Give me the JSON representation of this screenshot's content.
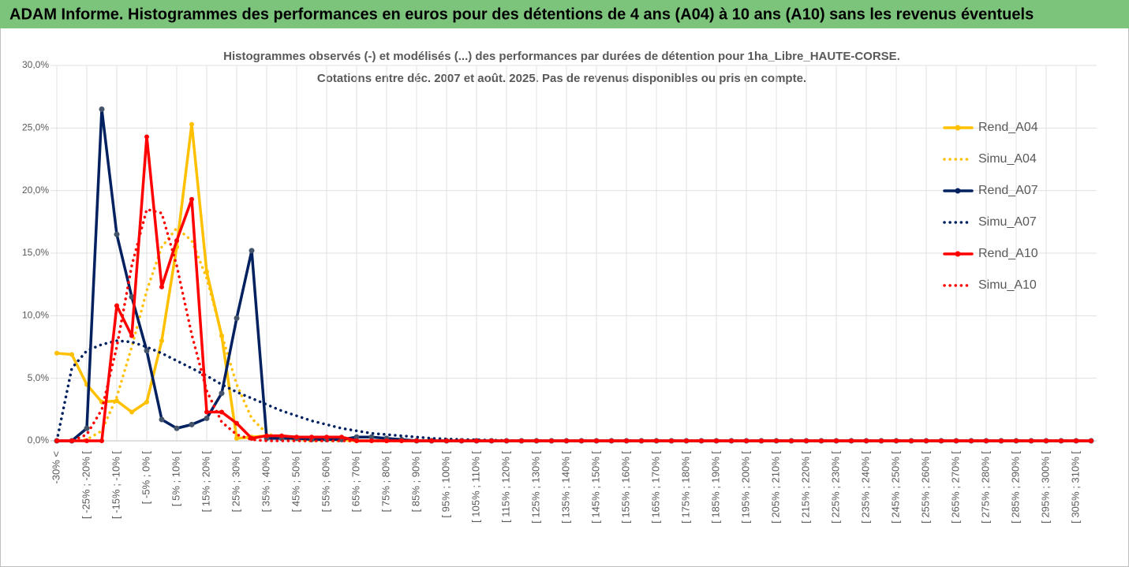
{
  "header": "ADAM Informe. Histogrammes des performances en euros pour des détentions de 4 ans (A04) à 10 ans (A10) sans les revenus éventuels",
  "chart_data": {
    "type": "line",
    "title": "Histogrammes observés (-) et modélisés (...) des performances par durées de détention pour 1ha_Libre_HAUTE-CORSE.",
    "subtitle": "Cotations entre déc. 2007 et août. 2025. Pas de revenus disponibles ou pris en compte.",
    "categories": [
      "-30% <",
      null,
      "[ -25% ; -20% [",
      null,
      "[ -15% ; -10% [",
      null,
      "[ -5% ; 0% [",
      null,
      "[ 5% ; 10% [",
      null,
      "[ 15% ; 20% [",
      null,
      "[ 25% ; 30% [",
      null,
      "[ 35% ; 40% [",
      null,
      "[ 45% ; 50% [",
      null,
      "[ 55% ; 60% [",
      null,
      "[ 65% ; 70% [",
      null,
      "[ 75% ; 80% [",
      null,
      "[ 85% ; 90% [",
      null,
      "[ 95% ; 100% [",
      null,
      "[ 105% ; 110% [",
      null,
      "[ 115% ; 120% [",
      null,
      "[ 125% ; 130% [",
      null,
      "[ 135% ; 140% [",
      null,
      "[ 145% ; 150% [",
      null,
      "[ 155% ; 160% [",
      null,
      "[ 165% ; 170% [",
      null,
      "[ 175% ; 180% [",
      null,
      "[ 185% ; 190% [",
      null,
      "[ 195% ; 200% [",
      null,
      "[ 205% ; 210% [",
      null,
      "[ 215% ; 220% [",
      null,
      "[ 225% ; 230% [",
      null,
      "[ 235% ; 240% [",
      null,
      "[ 245% ; 250% [",
      null,
      "[ 255% ; 260% [",
      null,
      "[ 265% ; 270% [",
      null,
      "[ 275% ; 280% [",
      null,
      "[ 285% ; 290% [",
      null,
      "[ 295% ; 300% [",
      null,
      "[ 305% ; 310% [",
      null
    ],
    "series": [
      {
        "name": "Rend_A04",
        "color": "#FFC000",
        "style": "solid",
        "markers": true,
        "values": [
          7.0,
          6.9,
          4.5,
          3.1,
          3.2,
          2.3,
          3.1,
          8.0,
          15.5,
          25.3,
          13.5,
          8.4,
          0.2,
          0.3,
          0.4,
          0.3,
          0.2,
          0.1,
          0.1,
          0.1,
          0,
          0,
          0,
          0,
          0,
          0,
          0,
          0,
          0,
          0,
          0,
          0,
          0,
          0,
          0,
          0,
          0,
          0,
          0,
          0,
          0,
          0,
          0,
          0,
          0,
          0,
          0,
          0,
          0,
          0,
          0,
          0,
          0,
          0,
          0,
          0,
          0,
          0,
          0,
          0,
          0,
          0,
          0,
          0,
          0,
          0,
          0,
          0,
          0,
          0
        ]
      },
      {
        "name": "Simu_A04",
        "color": "#FFC000",
        "style": "dotted",
        "markers": false,
        "values": [
          0,
          0,
          0.1,
          0.8,
          3.5,
          7.5,
          12,
          15.5,
          17,
          16,
          13,
          8.5,
          4.5,
          1.8,
          0.6,
          0.2,
          0.05,
          0,
          0,
          0,
          0,
          0,
          0,
          0,
          0,
          0,
          0,
          0,
          0,
          0,
          0,
          0,
          0,
          0,
          0,
          0,
          0,
          0,
          0,
          0,
          0,
          0,
          0,
          0,
          0,
          0,
          0,
          0,
          0,
          0,
          0,
          0,
          0,
          0,
          0,
          0,
          0,
          0,
          0,
          0,
          0,
          0,
          0,
          0,
          0,
          0,
          0,
          0,
          0,
          0
        ]
      },
      {
        "name": "Rend_A07",
        "color": "#002060",
        "style": "solid",
        "markers": true,
        "values": [
          0,
          0,
          1.0,
          26.5,
          16.5,
          11.5,
          7.2,
          1.7,
          1.0,
          1.3,
          1.8,
          3.8,
          9.8,
          15.2,
          0.2,
          0.2,
          0.2,
          0.1,
          0.1,
          0.1,
          0.3,
          0.3,
          0.2,
          0.1,
          0,
          0,
          0,
          0,
          0,
          0,
          0,
          0,
          0,
          0,
          0,
          0,
          0,
          0,
          0,
          0,
          0,
          0,
          0,
          0,
          0,
          0,
          0,
          0,
          0,
          0,
          0,
          0,
          0,
          0,
          0,
          0,
          0,
          0,
          0,
          0,
          0,
          0,
          0,
          0,
          0,
          0,
          0,
          0,
          0,
          0
        ]
      },
      {
        "name": "Simu_A07",
        "color": "#002060",
        "style": "dotted",
        "markers": false,
        "values": [
          0,
          5.8,
          7.2,
          7.7,
          8.0,
          7.9,
          7.5,
          7.0,
          6.4,
          5.8,
          5.2,
          4.5,
          3.9,
          3.4,
          2.9,
          2.4,
          2.0,
          1.6,
          1.3,
          1.0,
          0.8,
          0.6,
          0.5,
          0.4,
          0.3,
          0.2,
          0.15,
          0.1,
          0.08,
          0.05,
          0.03,
          0,
          0,
          0,
          0,
          0,
          0,
          0,
          0,
          0,
          0,
          0,
          0,
          0,
          0,
          0,
          0,
          0,
          0,
          0,
          0,
          0,
          0,
          0,
          0,
          0,
          0,
          0,
          0,
          0,
          0,
          0,
          0,
          0,
          0,
          0,
          0,
          0,
          0,
          0
        ]
      },
      {
        "name": "Rend_A10",
        "color": "#FF0000",
        "style": "solid",
        "markers": true,
        "values": [
          0,
          0,
          0,
          0,
          10.8,
          8.4,
          24.3,
          12.3,
          16.0,
          19.3,
          2.3,
          2.3,
          1.4,
          0.2,
          0.4,
          0.4,
          0.3,
          0.3,
          0.3,
          0.3,
          0,
          0,
          0,
          0,
          0,
          0,
          0,
          0,
          0,
          0,
          0,
          0,
          0,
          0,
          0,
          0,
          0,
          0,
          0,
          0,
          0,
          0,
          0,
          0,
          0,
          0,
          0,
          0,
          0,
          0,
          0,
          0,
          0,
          0,
          0,
          0,
          0,
          0,
          0,
          0,
          0,
          0,
          0,
          0,
          0,
          0,
          0,
          0,
          0,
          0
        ]
      },
      {
        "name": "Simu_A10",
        "color": "#FF0000",
        "style": "dotted",
        "markers": false,
        "values": [
          0,
          0,
          0.5,
          2.5,
          7.5,
          14,
          18.5,
          18.2,
          14,
          8.5,
          4,
          1.5,
          0.5,
          0.1,
          0,
          0,
          0,
          0,
          0,
          0,
          0,
          0,
          0,
          0,
          0,
          0,
          0,
          0,
          0,
          0,
          0,
          0,
          0,
          0,
          0,
          0,
          0,
          0,
          0,
          0,
          0,
          0,
          0,
          0,
          0,
          0,
          0,
          0,
          0,
          0,
          0,
          0,
          0,
          0,
          0,
          0,
          0,
          0,
          0,
          0,
          0,
          0,
          0,
          0,
          0,
          0,
          0,
          0,
          0,
          0
        ]
      }
    ],
    "ylim": [
      0,
      30
    ],
    "yticks": [
      {
        "value": 0,
        "label": "0,0%"
      },
      {
        "value": 5,
        "label": "5,0%"
      },
      {
        "value": 10,
        "label": "10,0%"
      },
      {
        "value": 15,
        "label": "15,0%"
      },
      {
        "value": 20,
        "label": "20,0%"
      },
      {
        "value": 25,
        "label": "25,0%"
      },
      {
        "value": 30,
        "label": "30,0%"
      }
    ],
    "grid": true,
    "legend": "right"
  }
}
